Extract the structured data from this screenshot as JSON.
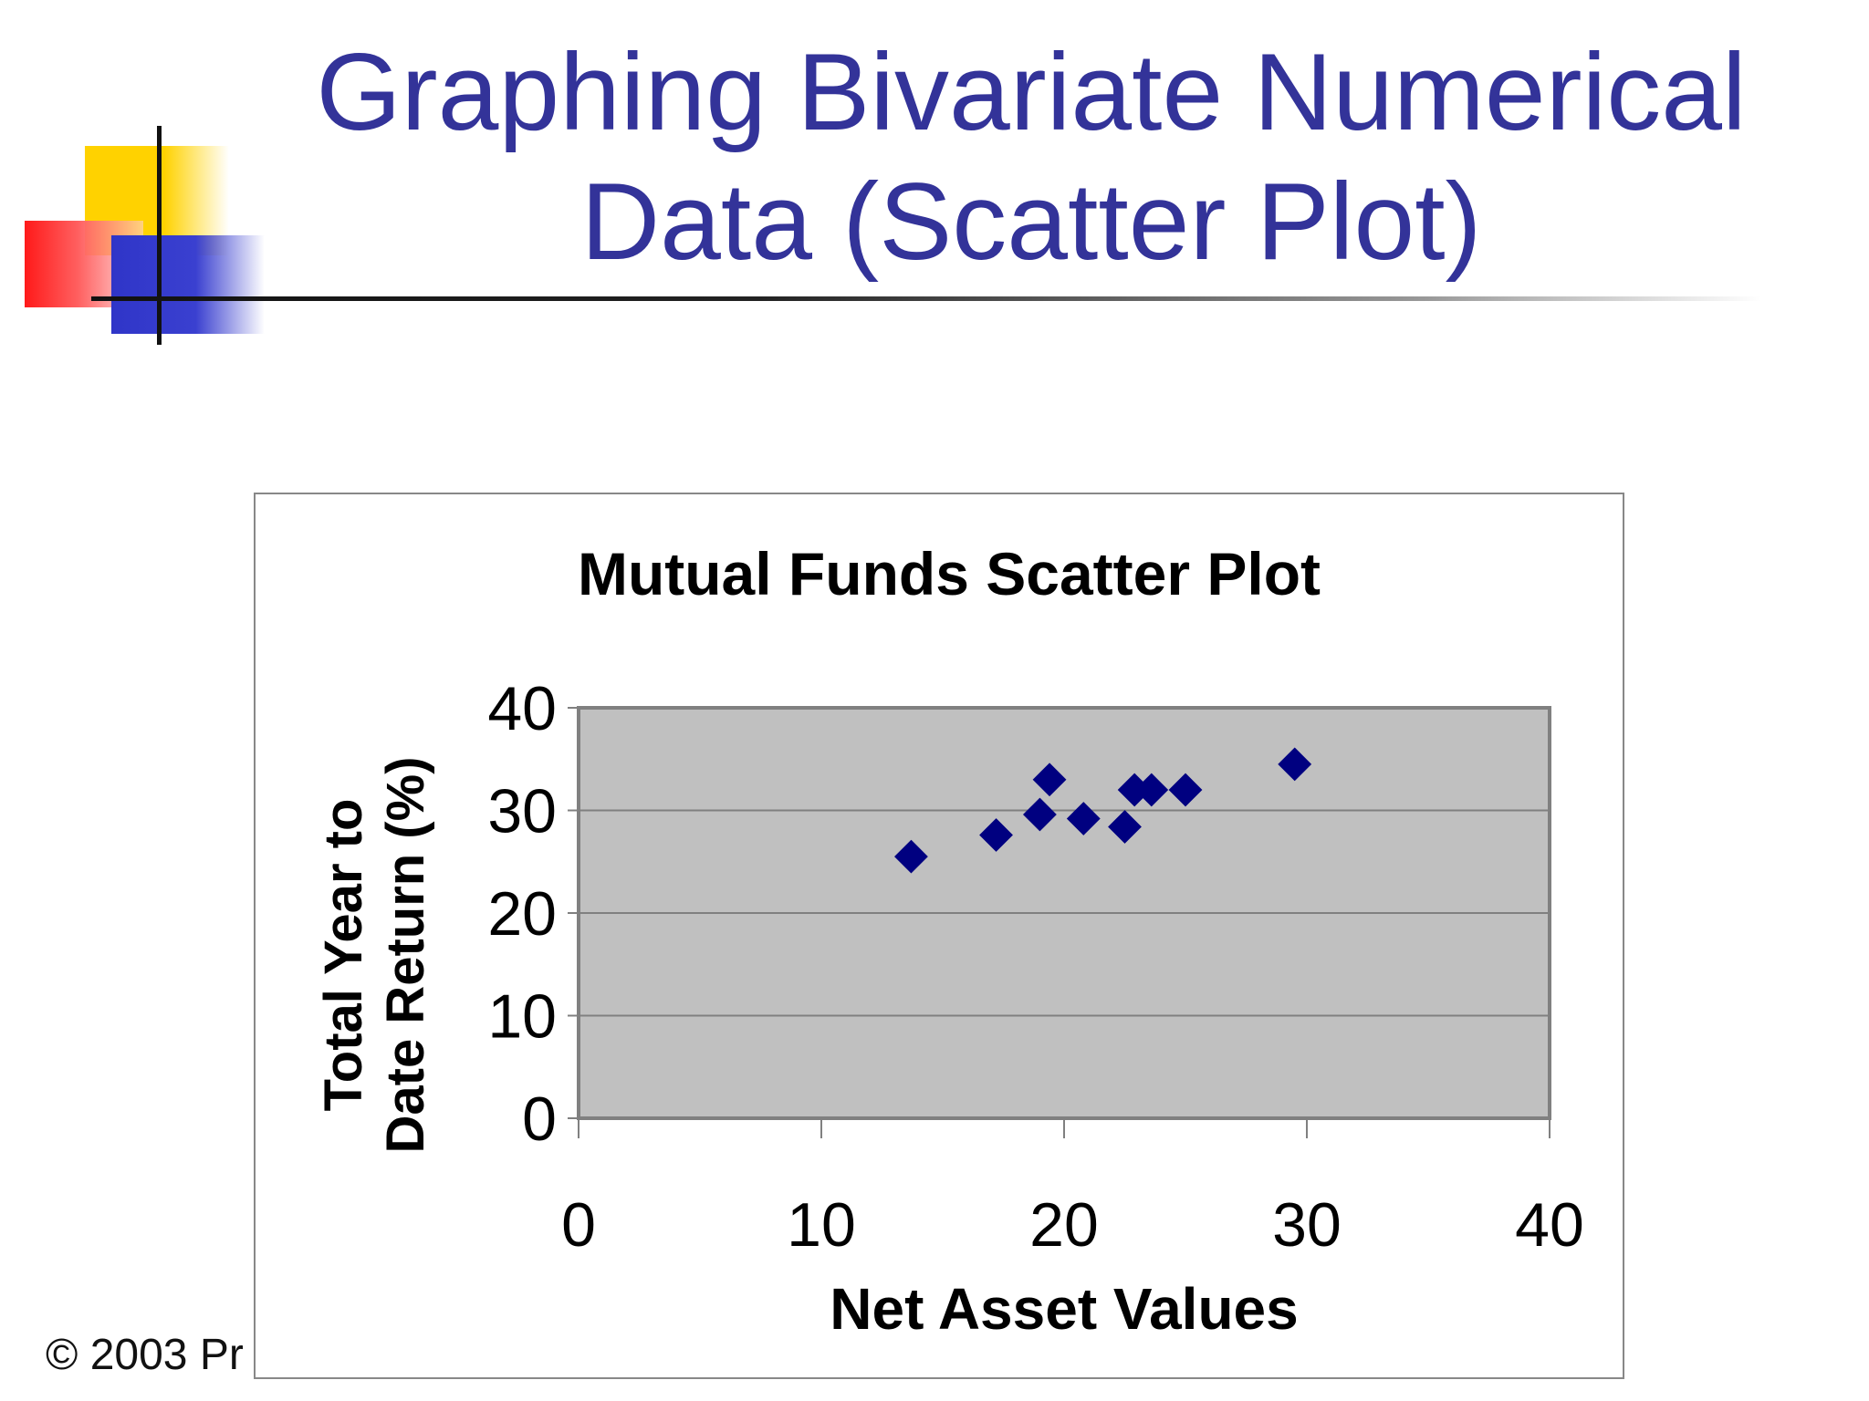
{
  "slide": {
    "title_line1": "Graphing Bivariate Numerical",
    "title_line2": "Data (Scatter Plot)",
    "footer": "© 2003 Pr"
  },
  "colors": {
    "title": "#333399",
    "plot_area": "#c0c0c0",
    "marker": "#000080",
    "grid": "#808080"
  },
  "chart_data": {
    "type": "scatter",
    "title": "Mutual Funds Scatter Plot",
    "xlabel": "Net Asset Values",
    "ylabel_line1": "Total Year to",
    "ylabel_line2": "Date Return (%)",
    "xlim": [
      0,
      40
    ],
    "ylim": [
      0,
      40
    ],
    "xticks": [
      "0",
      "10",
      "20",
      "30",
      "40"
    ],
    "yticks": [
      "0",
      "10",
      "20",
      "30",
      "40"
    ],
    "grid": "horizontal",
    "legend": "none",
    "marker": "diamond",
    "series": [
      {
        "points": [
          {
            "x": 13.7,
            "y": 25.5
          },
          {
            "x": 17.2,
            "y": 27.6
          },
          {
            "x": 19.0,
            "y": 29.6
          },
          {
            "x": 19.4,
            "y": 33.0
          },
          {
            "x": 20.8,
            "y": 29.2
          },
          {
            "x": 22.5,
            "y": 28.4
          },
          {
            "x": 22.9,
            "y": 32.0
          },
          {
            "x": 23.6,
            "y": 32.0
          },
          {
            "x": 25.0,
            "y": 32.0
          },
          {
            "x": 29.5,
            "y": 34.5
          }
        ]
      }
    ]
  }
}
